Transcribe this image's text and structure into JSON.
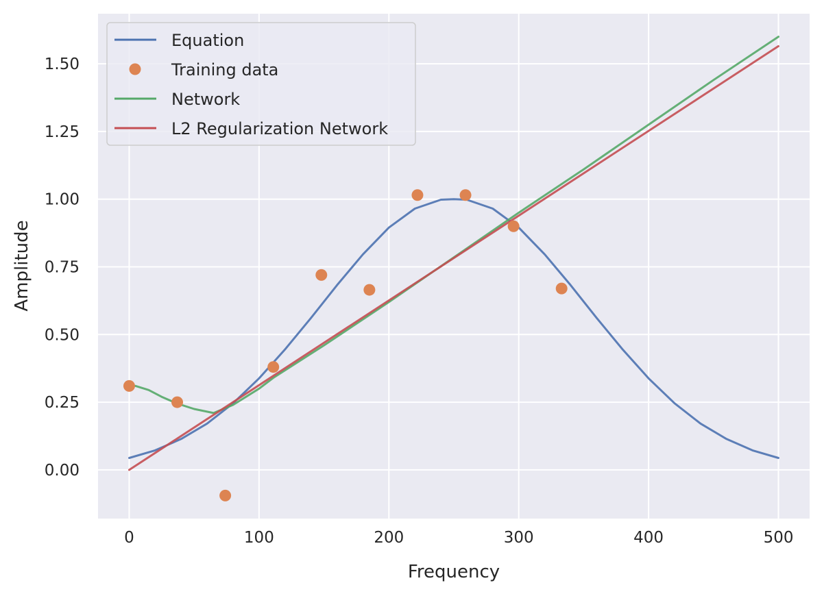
{
  "chart_data": {
    "type": "line",
    "xlabel": "Frequency",
    "ylabel": "Amplitude",
    "xlim": [
      -24,
      524
    ],
    "ylim": [
      -0.18,
      1.685
    ],
    "xticks": [
      0,
      100,
      200,
      300,
      400,
      500
    ],
    "yticks": [
      0.0,
      0.25,
      0.5,
      0.75,
      1.0,
      1.25,
      1.5
    ],
    "ytick_labels": [
      "0.00",
      "0.25",
      "0.50",
      "0.75",
      "1.00",
      "1.25",
      "1.50"
    ],
    "grid": true,
    "legend_position": "top-left",
    "series": [
      {
        "name": "Equation",
        "kind": "line",
        "color": "#4c72b0",
        "x": [
          0,
          20,
          40,
          60,
          80,
          100,
          120,
          140,
          160,
          180,
          200,
          220,
          240,
          250,
          260,
          280,
          300,
          320,
          340,
          360,
          380,
          400,
          420,
          440,
          460,
          480,
          500
        ],
        "y": [
          0.044,
          0.072,
          0.114,
          0.171,
          0.246,
          0.338,
          0.445,
          0.561,
          0.682,
          0.796,
          0.895,
          0.965,
          0.998,
          1.0,
          0.998,
          0.965,
          0.895,
          0.796,
          0.682,
          0.561,
          0.445,
          0.338,
          0.246,
          0.171,
          0.114,
          0.072,
          0.044
        ]
      },
      {
        "name": "Training data",
        "kind": "scatter",
        "color": "#dd8452",
        "x": [
          0,
          37,
          74,
          111,
          148,
          185,
          222,
          259,
          296,
          333
        ],
        "y": [
          0.31,
          0.25,
          -0.095,
          0.38,
          0.72,
          0.665,
          1.015,
          1.015,
          0.9,
          0.67
        ]
      },
      {
        "name": "Network",
        "kind": "line",
        "color": "#55a868",
        "x": [
          0,
          5,
          15,
          25,
          37,
          50,
          65,
          80,
          100,
          111,
          150,
          200,
          250,
          300,
          350,
          400,
          450,
          500
        ],
        "y": [
          0.31,
          0.31,
          0.295,
          0.27,
          0.245,
          0.225,
          0.21,
          0.24,
          0.3,
          0.34,
          0.46,
          0.62,
          0.785,
          0.95,
          1.11,
          1.275,
          1.44,
          1.6
        ]
      },
      {
        "name": "L2 Regularization Network",
        "kind": "line",
        "color": "#c44e52",
        "x": [
          0,
          500
        ],
        "y": [
          0.0,
          1.565
        ]
      }
    ]
  }
}
